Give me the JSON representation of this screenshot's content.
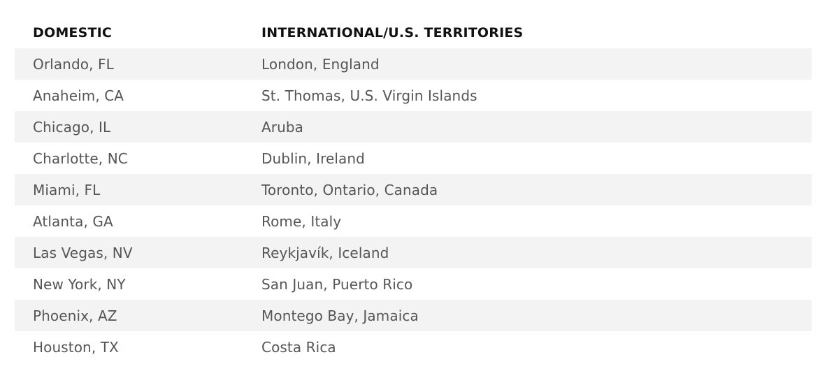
{
  "table": {
    "headers": {
      "domestic": "DOMESTIC",
      "international": "INTERNATIONAL/U.S. TERRITORIES"
    },
    "rows": [
      {
        "domestic": "Orlando, FL",
        "international": "London, England"
      },
      {
        "domestic": "Anaheim, CA",
        "international": "St. Thomas, U.S. Virgin Islands"
      },
      {
        "domestic": "Chicago, IL",
        "international": "Aruba"
      },
      {
        "domestic": "Charlotte, NC",
        "international": "Dublin, Ireland"
      },
      {
        "domestic": "Miami, FL",
        "international": "Toronto, Ontario, Canada"
      },
      {
        "domestic": "Atlanta, GA",
        "international": "Rome, Italy"
      },
      {
        "domestic": "Las Vegas, NV",
        "international": "Reykjavík, Iceland"
      },
      {
        "domestic": "New York, NY",
        "international": "San Juan, Puerto Rico"
      },
      {
        "domestic": "Phoenix, AZ",
        "international": "Montego Bay, Jamaica"
      },
      {
        "domestic": "Houston, TX",
        "international": "Costa Rica"
      }
    ]
  },
  "colors": {
    "stripe": "#f3f3f3",
    "header_text": "#111111",
    "cell_text": "#555555"
  }
}
